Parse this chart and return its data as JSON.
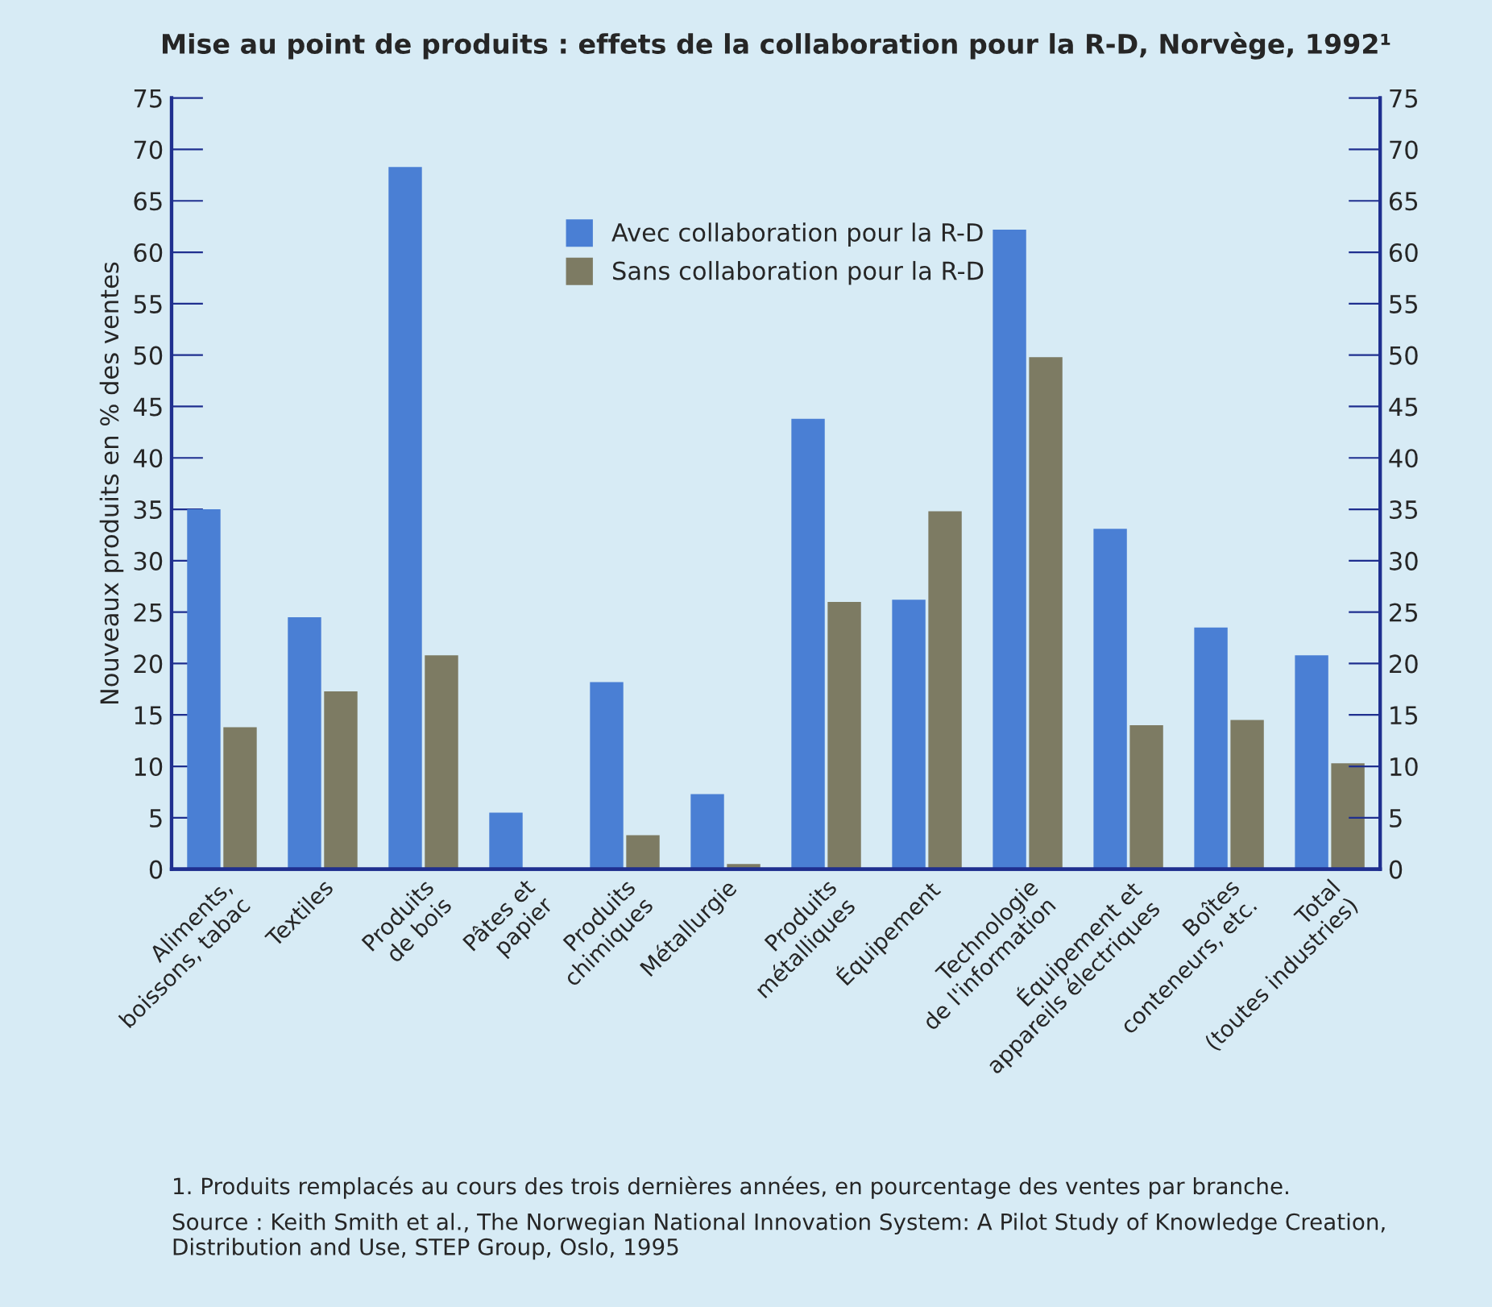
{
  "chart_data": {
    "type": "bar",
    "title": "Mise au point de produits : effets de la collaboration pour la R-D, Norvège, 1992¹",
    "ylabel": "Nouveaux produits en % des ventes",
    "categories": [
      "Aliments,\nboissons, tabac",
      "Textiles",
      "Produits\nde bois",
      "Pâtes et\npapier",
      "Produits\nchimiques",
      "Métallurgie",
      "Produits\nmétalliques",
      "Équipement",
      "Technologie\nde l'information",
      "Équipement et\nappareils électriques",
      "Boîtes\nconteneurs, etc.",
      "Total\n(toutes industries)"
    ],
    "series": [
      {
        "name": "Avec collaboration pour la R-D",
        "color": "#4a7fd4",
        "values": [
          35,
          24.5,
          68.3,
          5.5,
          18.2,
          7.3,
          43.8,
          26.2,
          62.2,
          33.1,
          23.5,
          20.8
        ]
      },
      {
        "name": "Sans collaboration pour la R-D",
        "color": "#7d7b63",
        "values": [
          13.8,
          17.3,
          20.8,
          null,
          3.3,
          0.5,
          26,
          34.8,
          49.8,
          14,
          14.5,
          10.3
        ]
      }
    ],
    "ylim": [
      0,
      75
    ],
    "yticks": [
      0,
      5,
      10,
      15,
      20,
      25,
      30,
      35,
      40,
      45,
      50,
      55,
      60,
      65,
      70,
      75
    ],
    "y2lim": [
      0,
      75
    ],
    "y2ticks": [
      0,
      5,
      10,
      15,
      20,
      25,
      30,
      35,
      40,
      45,
      50,
      55,
      60,
      65,
      70,
      75
    ],
    "grid": false,
    "legend": "top",
    "annotations": [
      "1. Produits remplacés au cours des trois dernières années, en pourcentage des ventes par branche.",
      "Source : Keith Smith et al., The Norwegian National Innovation System: A Pilot Study of Knowledge Creation, Distribution and Use, STEP Group, Oslo, 1995"
    ]
  }
}
